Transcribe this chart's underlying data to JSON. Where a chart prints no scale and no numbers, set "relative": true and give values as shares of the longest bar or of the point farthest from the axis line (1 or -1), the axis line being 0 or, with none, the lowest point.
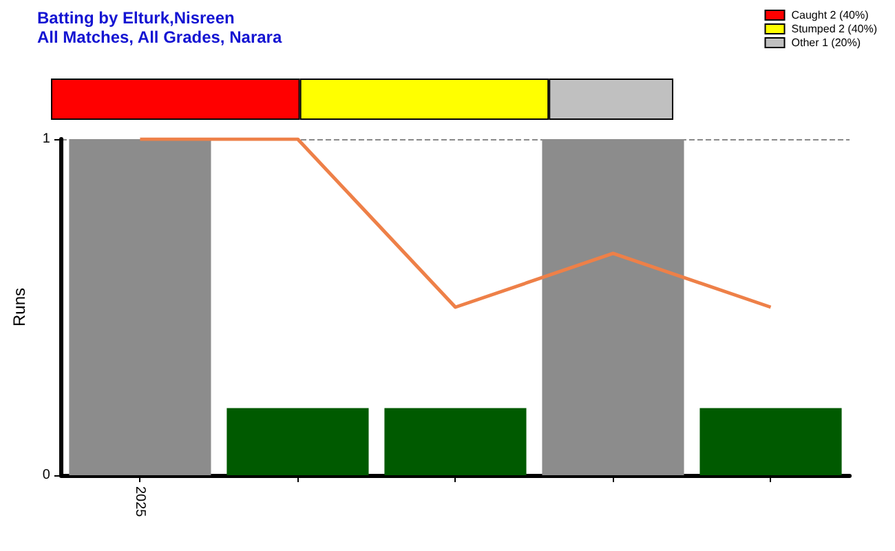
{
  "chart_data": [
    {
      "type": "bar",
      "title": "Batting by Elturk,Nisreen",
      "subtitle": "All Matches, All Grades, Narara",
      "orientation": "horizontal",
      "stacked": true,
      "relative": true,
      "categories": [
        null
      ],
      "legend": "top right",
      "series": [
        {
          "name": "Caught 2 (40%)",
          "color": "#ff0000",
          "values": [
            0.4
          ]
        },
        {
          "name": "Stumped 2 (40%)",
          "color": "#ffff00",
          "values": [
            0.4
          ]
        },
        {
          "name": "Other 1 (20%)",
          "color": "#c0c0c0",
          "values": [
            0.2
          ]
        }
      ]
    },
    {
      "type": "bar",
      "ylabel": "Runs",
      "categories": [
        "2025",
        null,
        null,
        null,
        null
      ],
      "ylim": [
        0,
        1
      ],
      "yticks": [
        0,
        1
      ],
      "grid": "y",
      "series": [
        {
          "colors": [
            "#8c8c8c",
            "#005a00",
            "#005a00",
            "#8c8c8c",
            "#005a00"
          ],
          "values": [
            1,
            0.2,
            0.2,
            1,
            0.2
          ]
        },
        {
          "type": "line",
          "color": "#ee8048",
          "marker": "none",
          "values": [
            1,
            1,
            0.5,
            0.66,
            0.5
          ]
        }
      ]
    }
  ]
}
